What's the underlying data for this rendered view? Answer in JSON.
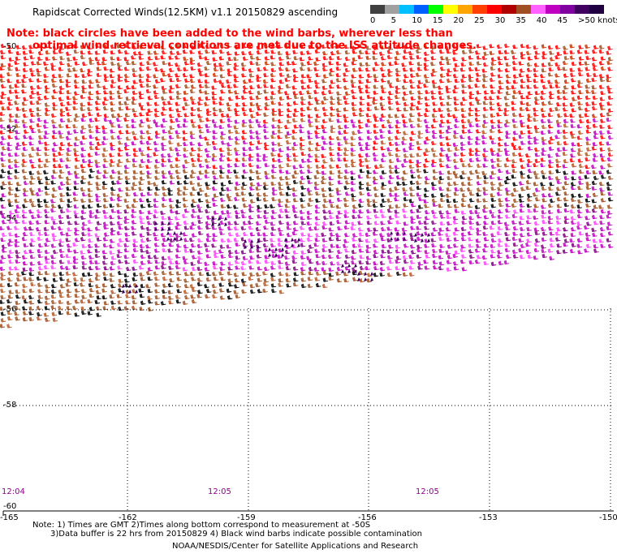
{
  "title": "Rapidscat Corrected Winds(12.5KM) v1.1 20150829 ascending",
  "note_line1": "Note: black circles have been added to the wind barbs, wherever less than",
  "note_line2": "optimal wind retrieval conditions are met due to the ISS attitude changes.",
  "legend": {
    "colors": [
      "#404040",
      "#a0a0a0",
      "#00bfff",
      "#0060ff",
      "#00ff00",
      "#ffff00",
      "#ffa500",
      "#ff4000",
      "#ff0000",
      "#b00000",
      "#a05020",
      "#ff60ff",
      "#c000c0",
      "#8000a0",
      "#400060",
      "#200040"
    ],
    "labels": [
      {
        "text": "0",
        "pos": 0
      },
      {
        "text": "5",
        "pos": 1
      },
      {
        "text": "10",
        "pos": 2
      },
      {
        "text": "15",
        "pos": 3
      },
      {
        "text": "20",
        "pos": 4
      },
      {
        "text": "25",
        "pos": 5
      },
      {
        "text": "30",
        "pos": 6
      },
      {
        "text": "35",
        "pos": 7
      },
      {
        "text": "40",
        "pos": 8
      },
      {
        "text": "45",
        "pos": 9
      },
      {
        "text": ">50 knots",
        "pos": 10
      }
    ]
  },
  "map": {
    "lon_labels": [
      "-165",
      "-162",
      "-159",
      "-156",
      "-153",
      "-150"
    ],
    "lat_labels": [
      "-50",
      "-52",
      "-54",
      "-56",
      "-58",
      "-60"
    ],
    "time_labels": [
      "12:04",
      "12:05",
      "12:05"
    ],
    "barb_colors": [
      "#ff0000",
      "#cc3300",
      "#a05020",
      "#c000c0",
      "#ff40ff",
      "#000000",
      "#800080",
      "#b85a28"
    ]
  },
  "footer": {
    "line1": "Note: 1) Times are GMT 2)Times along bottom correspond to measurement at -50S",
    "line2": "3)Data buffer is 22 hrs from 20150829 4) Black wind barbs indicate possible contamination",
    "line3": "NOAA/NESDIS/Center for Satellite Applications and Research"
  }
}
